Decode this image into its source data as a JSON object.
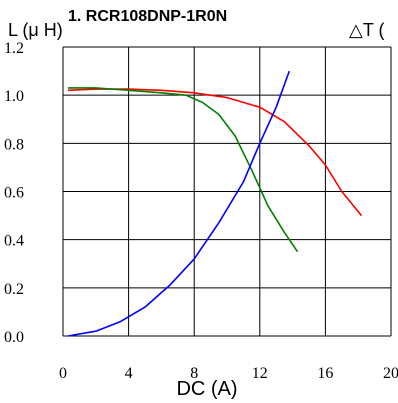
{
  "chart_data": {
    "type": "line",
    "title": "1. RCR108DNP-1R0N",
    "ylabel": "L (μ H)",
    "y2label": "△T (",
    "xlabel": "DC (A)",
    "xlim": [
      0,
      20
    ],
    "ylim": [
      0,
      1.2
    ],
    "xticks": [
      0,
      4,
      8,
      12,
      16,
      20
    ],
    "yticks": [
      0.0,
      0.2,
      0.4,
      0.6,
      0.8,
      1.0,
      1.2
    ],
    "xtick_labels": [
      "0",
      "4",
      "8",
      "12",
      "16",
      "20"
    ],
    "ytick_labels": [
      "0.0",
      "0.2",
      "0.4",
      "0.6",
      "0.8",
      "1.0",
      "1.2"
    ],
    "grid": true,
    "series": [
      {
        "color": "#ff0000",
        "x": [
          0.3,
          2,
          4,
          6,
          8,
          10,
          12,
          13.5,
          15,
          16,
          17,
          18.2
        ],
        "y": [
          1.02,
          1.025,
          1.025,
          1.02,
          1.01,
          0.99,
          0.95,
          0.89,
          0.79,
          0.71,
          0.6,
          0.5
        ]
      },
      {
        "color": "#008000",
        "x": [
          0.3,
          2,
          4,
          6,
          7.5,
          8.5,
          9.5,
          10.5,
          11.5,
          12.5,
          13.5,
          14.3
        ],
        "y": [
          1.03,
          1.03,
          1.02,
          1.01,
          1.0,
          0.97,
          0.92,
          0.83,
          0.69,
          0.54,
          0.43,
          0.35
        ]
      },
      {
        "color": "#0000ff",
        "x": [
          0.3,
          2,
          3.5,
          5,
          6.5,
          8,
          9.5,
          11,
          12,
          13,
          13.8
        ],
        "y": [
          0.0,
          0.02,
          0.06,
          0.12,
          0.21,
          0.32,
          0.47,
          0.64,
          0.8,
          0.95,
          1.1
        ]
      }
    ]
  }
}
